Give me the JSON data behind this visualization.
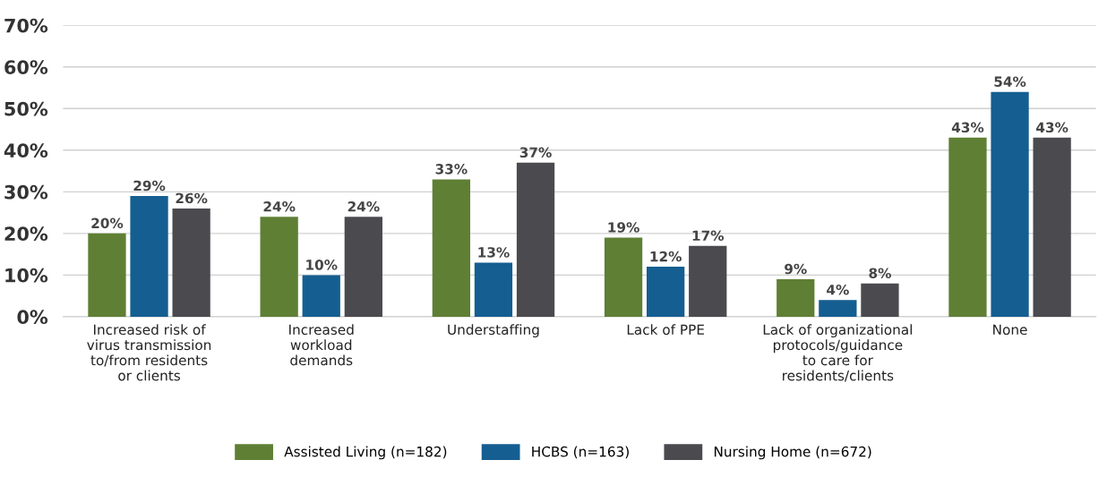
{
  "chart_data": {
    "type": "bar",
    "categories": [
      "Increased risk of\nvirus transmission\nto/from residents\nor clients",
      "Increased\nworkload\ndemands",
      "Understaffing",
      "Lack of PPE",
      "Lack of organizational\nprotocols/guidance\nto care for\nresidents/clients",
      "None"
    ],
    "series": [
      {
        "name": "Assisted Living (n=182)",
        "color": "#5f7f34",
        "values": [
          20,
          24,
          33,
          19,
          9,
          43
        ],
        "value_labels": [
          "20%",
          "24%",
          "33%",
          "19%",
          "9%",
          "43%"
        ]
      },
      {
        "name": "HCBS (n=163)",
        "color": "#155e91",
        "values": [
          29,
          10,
          13,
          12,
          4,
          54
        ],
        "value_labels": [
          "29%",
          "10%",
          "13%",
          "12%",
          "4%",
          "54%"
        ]
      },
      {
        "name": "Nursing Home (n=672)",
        "color": "#4a4a4f",
        "values": [
          26,
          24,
          37,
          17,
          8,
          43
        ],
        "value_labels": [
          "26%",
          "24%",
          "37%",
          "17%",
          "8%",
          "43%"
        ]
      }
    ],
    "ylim": [
      0,
      70
    ],
    "yticks": [
      {
        "value": 0,
        "label": "0%"
      },
      {
        "value": 10,
        "label": "10%"
      },
      {
        "value": 20,
        "label": "20%"
      },
      {
        "value": 30,
        "label": "30%"
      },
      {
        "value": 40,
        "label": "40%"
      },
      {
        "value": 50,
        "label": "50%"
      },
      {
        "value": 60,
        "label": "60%"
      },
      {
        "value": 70,
        "label": "70%"
      }
    ],
    "grid": "y",
    "legend": "bottom"
  }
}
